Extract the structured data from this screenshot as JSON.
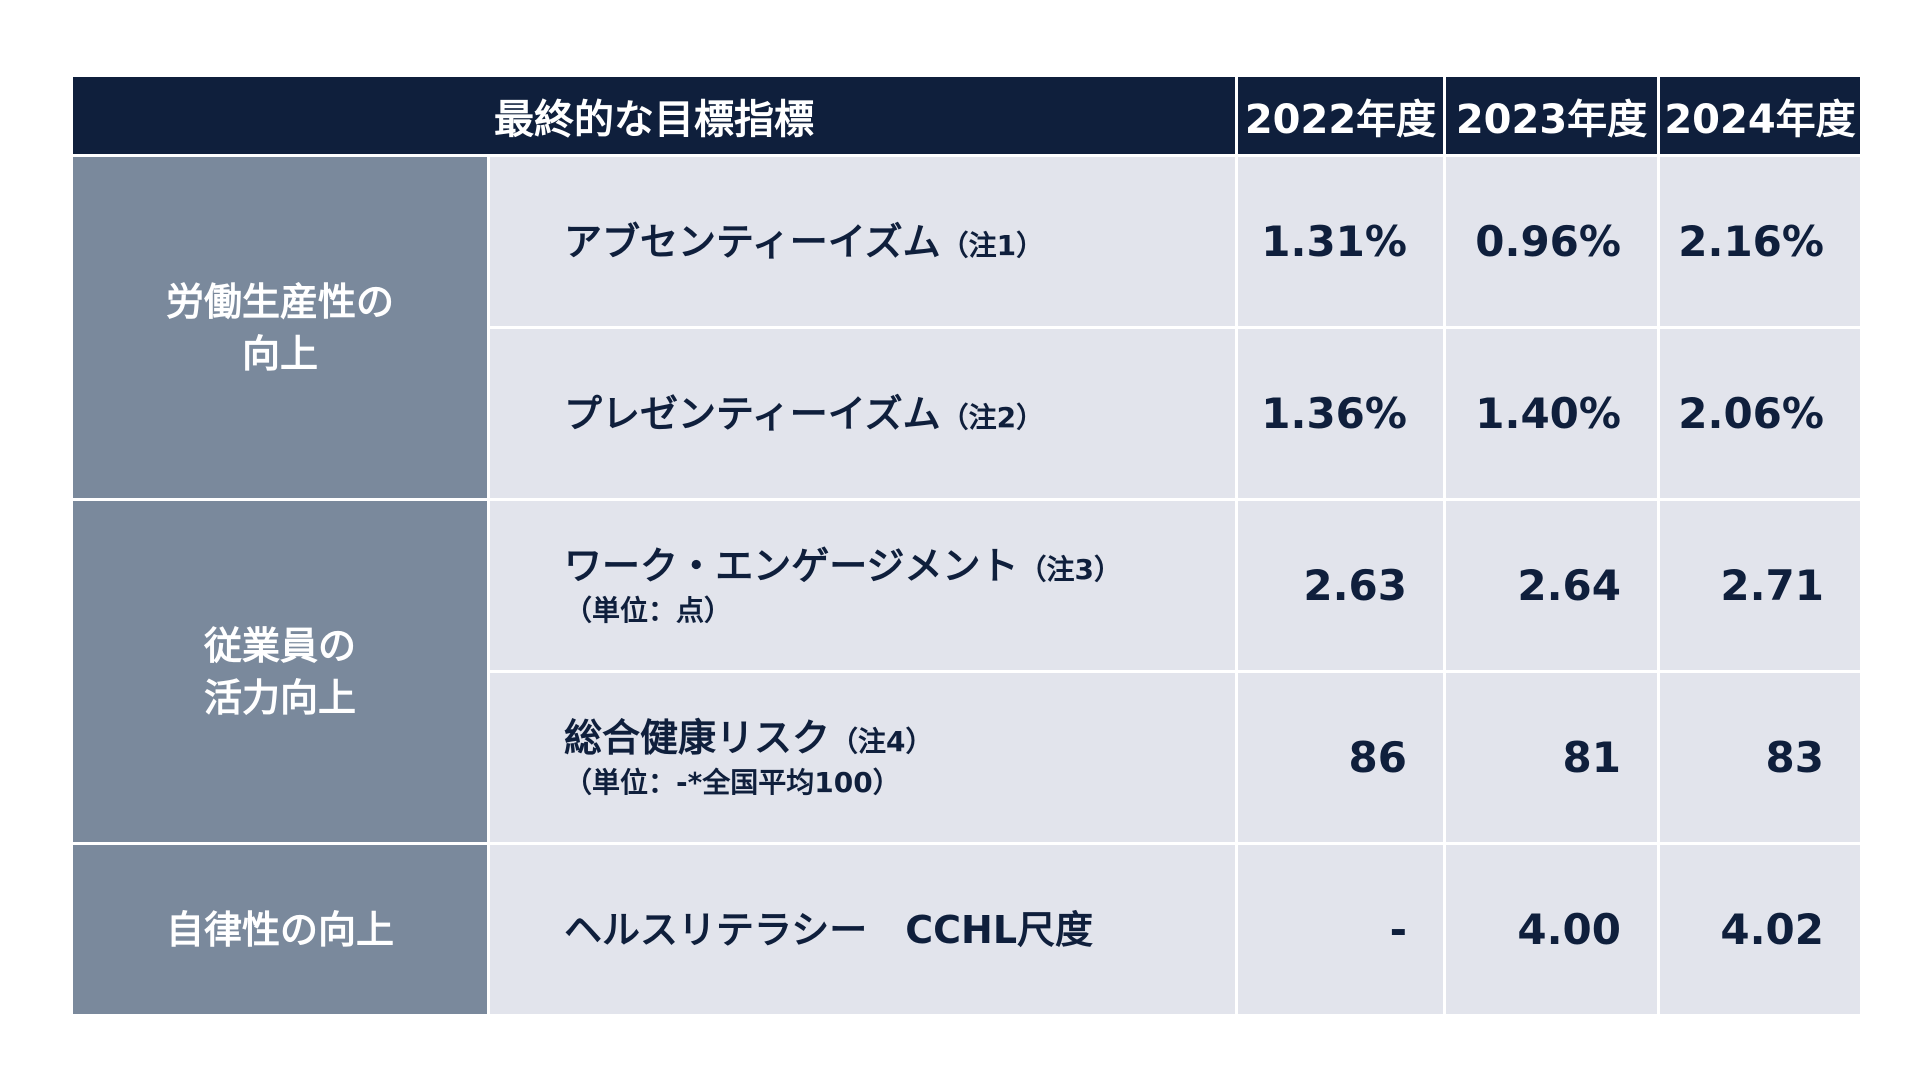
{
  "header": {
    "metric_label": "最終的な目標指標",
    "years": [
      "2022年度",
      "2023年度",
      "2024年度"
    ]
  },
  "groups": [
    {
      "category_lines": [
        "労働生産性の",
        "向上"
      ],
      "rows": [
        {
          "name": "アブセンティーイズム",
          "note": "（注1）",
          "sub": "",
          "values": [
            "1.31%",
            "0.96%",
            "2.16%"
          ]
        },
        {
          "name": "プレゼンティーイズム",
          "note": "（注2）",
          "sub": "",
          "values": [
            "1.36%",
            "1.40%",
            "2.06%"
          ]
        }
      ]
    },
    {
      "category_lines": [
        "従業員の",
        "活力向上"
      ],
      "rows": [
        {
          "name": "ワーク・エンゲージメント",
          "note": "（注3）",
          "sub": "（単位：点）",
          "values": [
            "2.63",
            "2.64",
            "2.71"
          ]
        },
        {
          "name": "総合健康リスク",
          "note": "（注4）",
          "sub": "（単位：-*全国平均100）",
          "values": [
            "86",
            "81",
            "83"
          ]
        }
      ]
    },
    {
      "category_lines": [
        "自律性の向上"
      ],
      "rows": [
        {
          "name": "ヘルスリテラシー　CCHL尺度",
          "note": "",
          "sub": "",
          "values": [
            "-",
            "4.00",
            "4.02"
          ]
        }
      ]
    }
  ],
  "colors": {
    "header_bg": "#0f1f3c",
    "category_bg": "#7a899c",
    "cell_bg": "#e2e4ec",
    "text_dark": "#0f1f3c"
  }
}
